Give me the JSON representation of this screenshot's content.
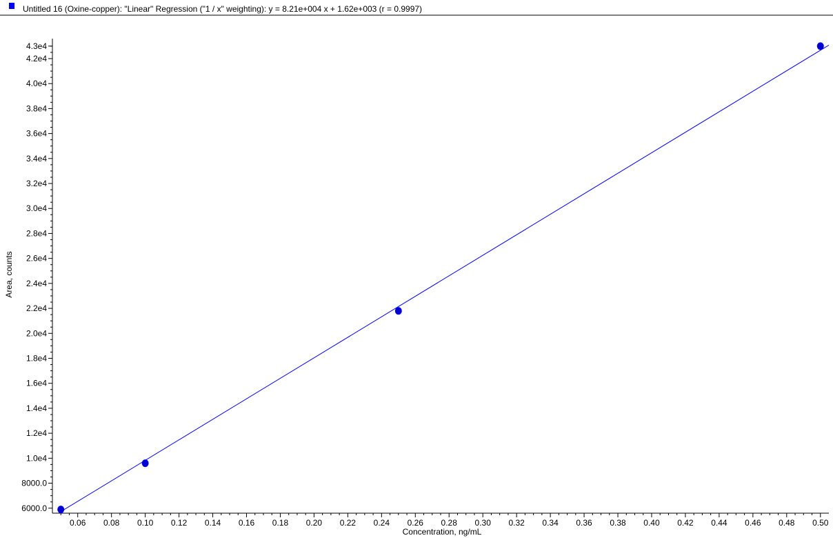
{
  "chart_data": {
    "type": "scatter",
    "title": "Untitled 16 (Oxine-copper): \"Linear\" Regression (\"1 / x\" weighting): y = 8.21e+004 x + 1.62e+003 (r = 0.9997)",
    "xlabel": "Concentration, ng/mL",
    "ylabel": "Area, counts",
    "xlim": [
      0.045,
      0.505
    ],
    "ylim": [
      5600,
      43600
    ],
    "x_ticks": [
      "0.06",
      "0.08",
      "0.10",
      "0.12",
      "0.14",
      "0.16",
      "0.18",
      "0.20",
      "0.22",
      "0.24",
      "0.26",
      "0.28",
      "0.30",
      "0.32",
      "0.34",
      "0.36",
      "0.38",
      "0.40",
      "0.42",
      "0.44",
      "0.46",
      "0.48",
      "0.50"
    ],
    "y_ticks": [
      "6000.0",
      "8000.0",
      "1.0e4",
      "1.2e4",
      "1.4e4",
      "1.6e4",
      "1.8e4",
      "2.0e4",
      "2.2e4",
      "2.4e4",
      "2.6e4",
      "2.8e4",
      "3.0e4",
      "3.2e4",
      "3.4e4",
      "3.6e4",
      "3.8e4",
      "4.0e4",
      "4.2e4",
      "4.3e4"
    ],
    "grid": false,
    "legend_position": "top-left",
    "series": [
      {
        "name": "Untitled 16 (Oxine-copper)",
        "color": "#0000ff",
        "marker_fill": "#0000cc",
        "x": [
          0.05,
          0.1,
          0.25,
          0.5
        ],
        "y": [
          5900,
          9600,
          21800,
          43000
        ]
      }
    ],
    "fit_line": {
      "slope": 82100,
      "intercept": 1620,
      "color": "#0000ff"
    }
  }
}
